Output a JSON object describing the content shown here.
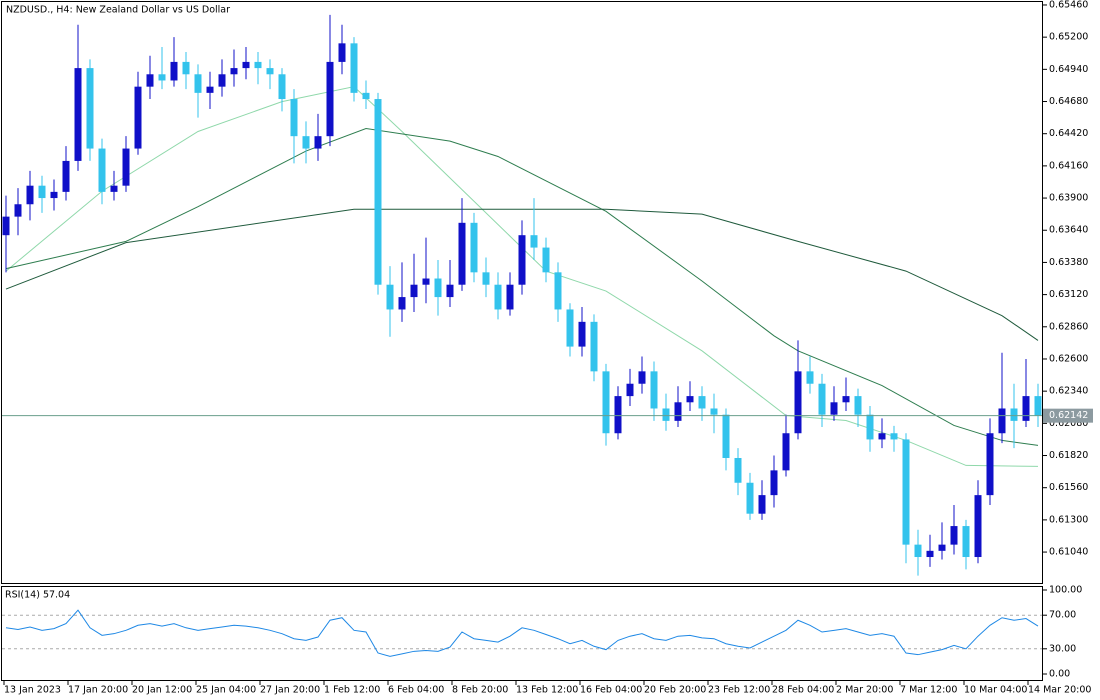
{
  "header": {
    "symbol_title": "NZDUSD., H4:  New Zealand Dollar vs US Dollar"
  },
  "chart_data": {
    "type": "candlestick",
    "up_color": "#1010c8",
    "down_color": "#33c3ec",
    "ylim": [
      0.60782,
      0.65484
    ],
    "yticks": [
      {
        "value": 0.6546,
        "label": "0.65460"
      },
      {
        "value": 0.652,
        "label": "0.65200"
      },
      {
        "value": 0.6494,
        "label": "0.64940"
      },
      {
        "value": 0.6468,
        "label": "0.64680"
      },
      {
        "value": 0.6442,
        "label": "0.64420"
      },
      {
        "value": 0.6416,
        "label": "0.64160"
      },
      {
        "value": 0.639,
        "label": "0.63900"
      },
      {
        "value": 0.6364,
        "label": "0.63640"
      },
      {
        "value": 0.6338,
        "label": "0.63380"
      },
      {
        "value": 0.6312,
        "label": "0.63120"
      },
      {
        "value": 0.6286,
        "label": "0.62860"
      },
      {
        "value": 0.626,
        "label": "0.62600"
      },
      {
        "value": 0.6234,
        "label": "0.62340"
      },
      {
        "value": 0.6208,
        "label": "0.62080"
      },
      {
        "value": 0.6182,
        "label": "0.61820"
      },
      {
        "value": 0.6156,
        "label": "0.61560"
      },
      {
        "value": 0.613,
        "label": "0.61300"
      },
      {
        "value": 0.6104,
        "label": "0.61040"
      }
    ],
    "current_price": 0.62142,
    "current_price_color": "#6a9e8c",
    "time_labels": [
      "13 Jan 2023",
      "17 Jan 20:00",
      "20 Jan 12:00",
      "25 Jan 04:00",
      "27 Jan 20:00",
      "1 Feb 12:00",
      "6 Feb 04:00",
      "8 Feb 20:00",
      "13 Feb 12:00",
      "16 Feb 04:00",
      "20 Feb 20:00",
      "23 Feb 12:00",
      "28 Feb 04:00",
      "2 Mar 20:00",
      "7 Mar 12:00",
      "10 Mar 04:00",
      "14 Mar 20:00"
    ],
    "candles": [
      [
        0.636,
        0.6392,
        0.633,
        0.6375
      ],
      [
        0.6375,
        0.6398,
        0.636,
        0.6385
      ],
      [
        0.6385,
        0.6412,
        0.6372,
        0.64
      ],
      [
        0.64,
        0.6408,
        0.6378,
        0.639
      ],
      [
        0.639,
        0.6405,
        0.638,
        0.6395
      ],
      [
        0.6395,
        0.6432,
        0.6388,
        0.642
      ],
      [
        0.642,
        0.653,
        0.6412,
        0.6495
      ],
      [
        0.6495,
        0.6502,
        0.642,
        0.643
      ],
      [
        0.643,
        0.6438,
        0.6385,
        0.6395
      ],
      [
        0.6395,
        0.6412,
        0.6388,
        0.64
      ],
      [
        0.64,
        0.644,
        0.6395,
        0.643
      ],
      [
        0.643,
        0.6492,
        0.6425,
        0.648
      ],
      [
        0.648,
        0.6505,
        0.647,
        0.649
      ],
      [
        0.649,
        0.6512,
        0.6478,
        0.6485
      ],
      [
        0.6485,
        0.652,
        0.648,
        0.65
      ],
      [
        0.65,
        0.6508,
        0.6478,
        0.649
      ],
      [
        0.649,
        0.6498,
        0.6455,
        0.6475
      ],
      [
        0.6475,
        0.6492,
        0.6462,
        0.648
      ],
      [
        0.648,
        0.6502,
        0.6472,
        0.649
      ],
      [
        0.649,
        0.651,
        0.648,
        0.6495
      ],
      [
        0.6495,
        0.6512,
        0.6486,
        0.65
      ],
      [
        0.65,
        0.6508,
        0.6482,
        0.6495
      ],
      [
        0.6495,
        0.6502,
        0.6478,
        0.649
      ],
      [
        0.649,
        0.6495,
        0.646,
        0.647
      ],
      [
        0.647,
        0.6478,
        0.6418,
        0.644
      ],
      [
        0.644,
        0.6452,
        0.6418,
        0.643
      ],
      [
        0.643,
        0.6458,
        0.642,
        0.644
      ],
      [
        0.644,
        0.6538,
        0.6432,
        0.65
      ],
      [
        0.65,
        0.653,
        0.649,
        0.6515
      ],
      [
        0.6515,
        0.652,
        0.6468,
        0.6475
      ],
      [
        0.6475,
        0.6485,
        0.6462,
        0.647
      ],
      [
        0.647,
        0.6475,
        0.6312,
        0.632
      ],
      [
        0.632,
        0.6335,
        0.6278,
        0.63
      ],
      [
        0.63,
        0.6338,
        0.629,
        0.631
      ],
      [
        0.631,
        0.6345,
        0.6298,
        0.632
      ],
      [
        0.632,
        0.6358,
        0.6305,
        0.6325
      ],
      [
        0.6325,
        0.634,
        0.6295,
        0.631
      ],
      [
        0.631,
        0.634,
        0.6302,
        0.632
      ],
      [
        0.632,
        0.639,
        0.6315,
        0.637
      ],
      [
        0.637,
        0.6378,
        0.6322,
        0.633
      ],
      [
        0.633,
        0.6342,
        0.631,
        0.632
      ],
      [
        0.632,
        0.633,
        0.6292,
        0.63
      ],
      [
        0.63,
        0.633,
        0.6295,
        0.632
      ],
      [
        0.632,
        0.6372,
        0.6312,
        0.636
      ],
      [
        0.636,
        0.639,
        0.634,
        0.635
      ],
      [
        0.635,
        0.6358,
        0.6322,
        0.633
      ],
      [
        0.633,
        0.6338,
        0.629,
        0.63
      ],
      [
        0.63,
        0.6305,
        0.6262,
        0.627
      ],
      [
        0.627,
        0.6302,
        0.6262,
        0.629
      ],
      [
        0.629,
        0.6296,
        0.6242,
        0.625
      ],
      [
        0.625,
        0.6256,
        0.619,
        0.62
      ],
      [
        0.62,
        0.6238,
        0.6195,
        0.623
      ],
      [
        0.623,
        0.6252,
        0.6222,
        0.624
      ],
      [
        0.624,
        0.6262,
        0.6232,
        0.625
      ],
      [
        0.625,
        0.6258,
        0.621,
        0.622
      ],
      [
        0.622,
        0.6232,
        0.6202,
        0.621
      ],
      [
        0.621,
        0.6238,
        0.6205,
        0.6225
      ],
      [
        0.6225,
        0.6242,
        0.6218,
        0.623
      ],
      [
        0.623,
        0.6238,
        0.621,
        0.622
      ],
      [
        0.622,
        0.6232,
        0.62,
        0.6215
      ],
      [
        0.6215,
        0.622,
        0.617,
        0.618
      ],
      [
        0.618,
        0.6188,
        0.615,
        0.616
      ],
      [
        0.616,
        0.6168,
        0.613,
        0.6135
      ],
      [
        0.6135,
        0.6162,
        0.613,
        0.615
      ],
      [
        0.615,
        0.6182,
        0.614,
        0.617
      ],
      [
        0.617,
        0.6215,
        0.6165,
        0.62
      ],
      [
        0.62,
        0.6275,
        0.6195,
        0.625
      ],
      [
        0.625,
        0.6262,
        0.6232,
        0.624
      ],
      [
        0.624,
        0.6248,
        0.6205,
        0.6215
      ],
      [
        0.6215,
        0.6238,
        0.621,
        0.6225
      ],
      [
        0.6225,
        0.6245,
        0.6218,
        0.623
      ],
      [
        0.623,
        0.6236,
        0.6205,
        0.6215
      ],
      [
        0.6215,
        0.6222,
        0.6185,
        0.6195
      ],
      [
        0.6195,
        0.6212,
        0.6188,
        0.62
      ],
      [
        0.62,
        0.6206,
        0.6185,
        0.6195
      ],
      [
        0.6195,
        0.62,
        0.6095,
        0.611
      ],
      [
        0.611,
        0.6122,
        0.6085,
        0.61
      ],
      [
        0.61,
        0.6118,
        0.6092,
        0.6105
      ],
      [
        0.6105,
        0.6128,
        0.6098,
        0.611
      ],
      [
        0.611,
        0.6142,
        0.6102,
        0.6125
      ],
      [
        0.6125,
        0.613,
        0.609,
        0.61
      ],
      [
        0.61,
        0.6162,
        0.6095,
        0.615
      ],
      [
        0.615,
        0.6212,
        0.6142,
        0.62
      ],
      [
        0.62,
        0.6265,
        0.6192,
        0.622
      ],
      [
        0.622,
        0.624,
        0.6188,
        0.621
      ],
      [
        0.621,
        0.626,
        0.6205,
        0.623
      ],
      [
        0.623,
        0.624,
        0.6205,
        0.62142
      ]
    ],
    "lines": [
      {
        "color": "#8fd8aa",
        "x": [
          0,
          8,
          16,
          23,
          29,
          33,
          39,
          45,
          50,
          58,
          65,
          70,
          75,
          80,
          86
        ],
        "values": [
          0.6331,
          0.63955,
          0.64438,
          0.64679,
          0.648,
          0.64438,
          0.63874,
          0.6331,
          0.63149,
          0.62666,
          0.62143,
          0.62103,
          0.61942,
          0.6174,
          0.61732
        ]
      },
      {
        "color": "#2e7d4f",
        "x": [
          0,
          10,
          16,
          25,
          30,
          37,
          41,
          50,
          58,
          64,
          66,
          73,
          79,
          83,
          86
        ],
        "values": [
          0.6333,
          0.6355,
          0.6383,
          0.6428,
          0.64462,
          0.6436,
          0.64236,
          0.63793,
          0.6323,
          0.62787,
          0.62666,
          0.62385,
          0.62063,
          0.61942,
          0.61902
        ]
      },
      {
        "color": "#1f5a3c",
        "x": [
          0,
          10,
          29,
          50,
          58,
          66,
          75,
          83,
          86
        ],
        "values": [
          0.63165,
          0.6354,
          0.6381,
          0.6381,
          0.6377,
          0.6355,
          0.6331,
          0.6295,
          0.6275
        ]
      }
    ]
  },
  "rsi": {
    "label": "RSI(14) 57.04",
    "color": "#1e88e5",
    "ylim": [
      0,
      100
    ],
    "yticks": [
      {
        "value": 100,
        "label": "100.00"
      },
      {
        "value": 70,
        "label": "70.00"
      },
      {
        "value": 30,
        "label": "30.00"
      },
      {
        "value": 0,
        "label": "0.00"
      }
    ],
    "levels": [
      70,
      30
    ],
    "values": [
      55,
      53,
      56,
      52,
      54,
      60,
      76,
      55,
      46,
      48,
      52,
      58,
      60,
      57,
      60,
      55,
      52,
      54,
      56,
      58,
      57,
      55,
      52,
      48,
      42,
      40,
      44,
      64,
      67,
      52,
      50,
      25,
      21,
      24,
      27,
      28,
      27,
      32,
      50,
      42,
      40,
      38,
      45,
      55,
      52,
      47,
      42,
      36,
      40,
      33,
      29,
      40,
      45,
      48,
      42,
      40,
      45,
      46,
      43,
      42,
      36,
      33,
      31,
      38,
      45,
      52,
      64,
      58,
      50,
      52,
      54,
      50,
      46,
      48,
      45,
      25,
      23,
      26,
      29,
      34,
      30,
      45,
      58,
      67,
      64,
      66,
      57.04
    ]
  }
}
